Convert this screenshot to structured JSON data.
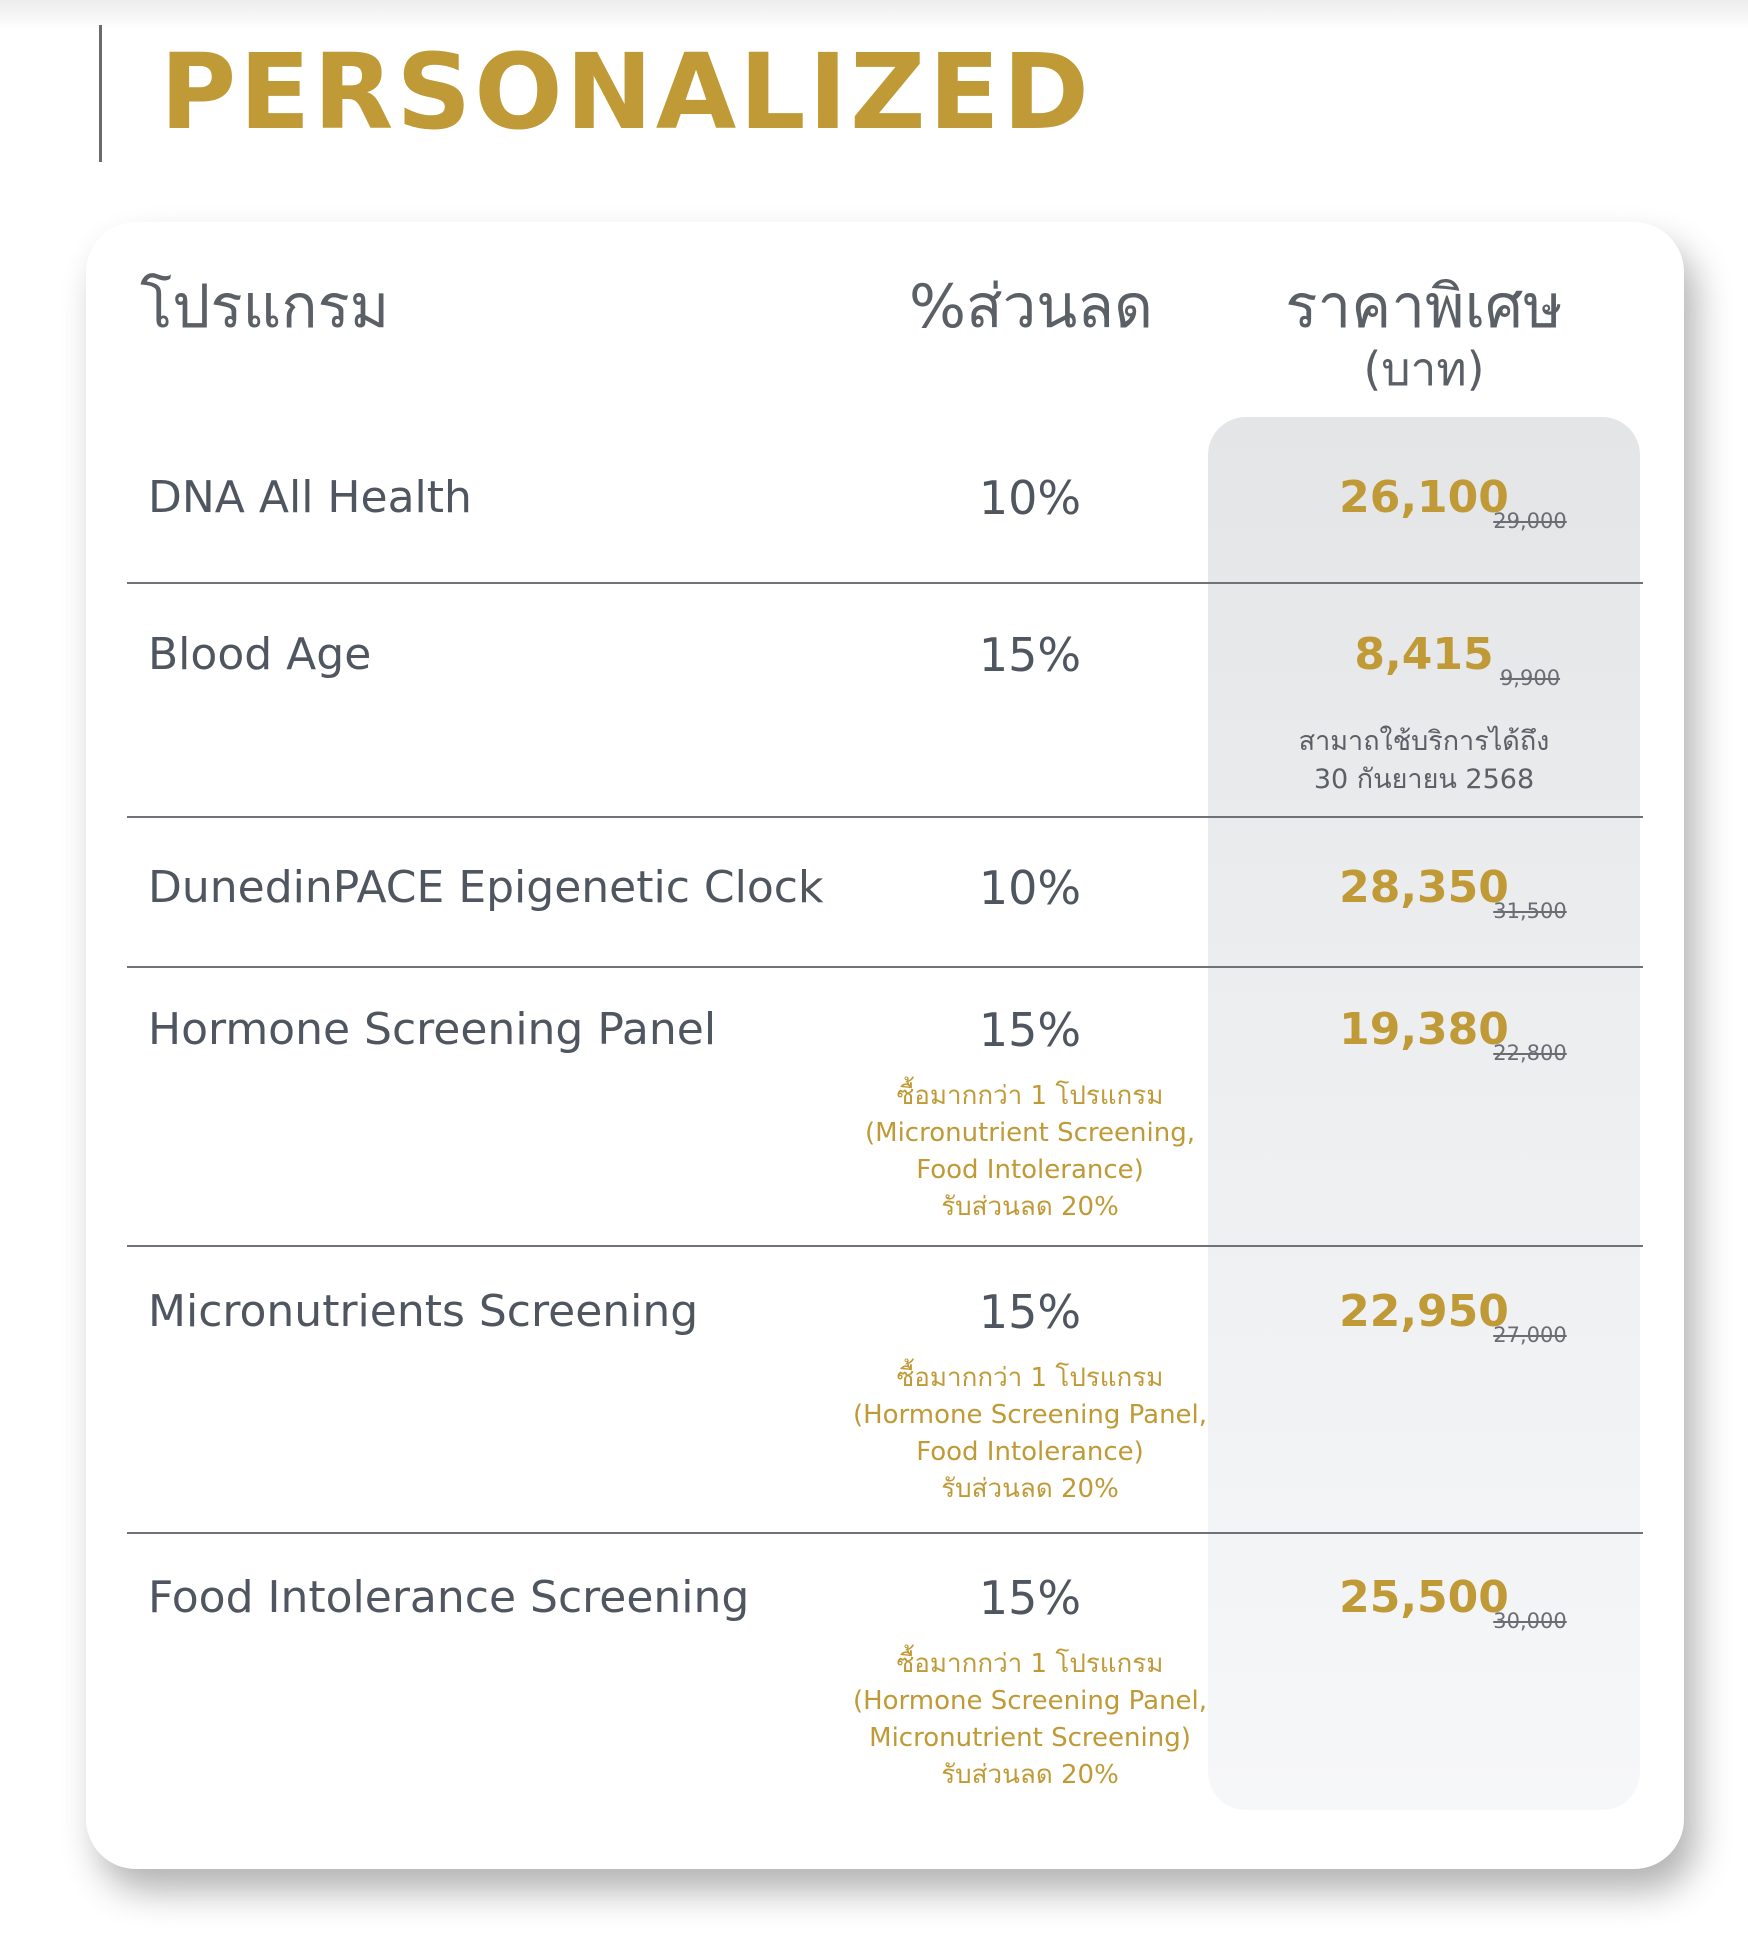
{
  "title": "PERSONALIZED",
  "table": {
    "headers": {
      "program": "โปรแกรม",
      "discount": "%ส่วนลด",
      "special_price": "ราคาพิเศษ",
      "unit": "(บาท)"
    },
    "rows": [
      {
        "name": "DNA All Health",
        "discount": "10%",
        "price": "26,100",
        "original_price": "29,000"
      },
      {
        "name": "Blood Age",
        "discount": "15%",
        "price": "8,415",
        "original_price": "9,900",
        "note": [
          "สามาถใช้บริการได้ถึง",
          "30 กันยายน 2568"
        ]
      },
      {
        "name": "DunedinPACE Epigenetic Clock",
        "discount": "10%",
        "price": "28,350",
        "original_price": "31,500"
      },
      {
        "name": "Hormone Screening Panel",
        "discount": "15%",
        "price": "19,380",
        "original_price": "22,800",
        "promo": [
          "ซื้อมากกว่า 1 โปรแกรม",
          "(Micronutrient Screening,",
          "Food Intolerance)",
          "รับส่วนลด 20%"
        ]
      },
      {
        "name": "Micronutrients Screening",
        "discount": "15%",
        "price": "22,950",
        "original_price": "27,000",
        "promo": [
          "ซื้อมากกว่า 1 โปรแกรม",
          "(Hormone Screening Panel,",
          "Food Intolerance)",
          "รับส่วนลด 20%"
        ]
      },
      {
        "name": "Food Intolerance Screening",
        "discount": "15%",
        "price": "25,500",
        "original_price": "30,000",
        "promo": [
          "ซื้อมากกว่า 1 โปรแกรม",
          "(Hormone Screening Panel,",
          "Micronutrient Screening)",
          "รับส่วนลด 20%"
        ]
      }
    ]
  },
  "colors": {
    "accent_gold": "#bf9a36",
    "text_gray": "#505660",
    "price_column_bg": "#e4e5e7"
  }
}
